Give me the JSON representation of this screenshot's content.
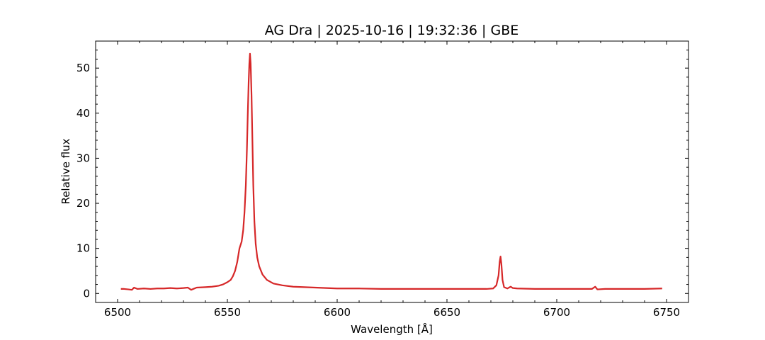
{
  "chart_data": {
    "type": "line",
    "title": "AG Dra | 2025-10-16 | 19:32:36 | GBE",
    "xlabel": "Wavelength [Å]",
    "ylabel": "Relative flux",
    "xlim": [
      6490,
      6760
    ],
    "ylim": [
      -2,
      56
    ],
    "xticks": [
      6500,
      6550,
      6600,
      6650,
      6700,
      6750
    ],
    "yticks": [
      0,
      10,
      20,
      30,
      40,
      50
    ],
    "grid": false,
    "series": [
      {
        "color": "#d62728",
        "x": [
          6501.5,
          6503,
          6505,
          6506.5,
          6507.5,
          6509,
          6512,
          6515,
          6518,
          6521,
          6524,
          6527,
          6530,
          6532,
          6533.5,
          6536,
          6540,
          6543,
          6546,
          6548,
          6550,
          6551.5,
          6552.5,
          6553.5,
          6554.5,
          6555.5,
          6556.5,
          6557.2,
          6557.8,
          6558.4,
          6558.9,
          6559.3,
          6559.7,
          6560.0,
          6560.3,
          6560.6,
          6561.0,
          6561.4,
          6561.8,
          6562.3,
          6562.9,
          6563.6,
          6564.5,
          6566,
          6568,
          6571,
          6575,
          6580,
          6585,
          6590,
          6595,
          6600,
          6610,
          6620,
          6630,
          6640,
          6650,
          6660,
          6668,
          6671,
          6672.5,
          6673.5,
          6674.0,
          6674.4,
          6674.8,
          6675.3,
          6676,
          6677.5,
          6679,
          6680,
          6682,
          6690,
          6700,
          6710,
          6716,
          6717.5,
          6718.5,
          6722,
          6730,
          6740,
          6748
        ],
        "y": [
          1.0,
          1.0,
          0.9,
          0.8,
          1.3,
          1.0,
          1.1,
          1.0,
          1.1,
          1.1,
          1.2,
          1.1,
          1.2,
          1.3,
          0.8,
          1.3,
          1.4,
          1.5,
          1.7,
          2.0,
          2.5,
          3.0,
          3.8,
          5.0,
          7.0,
          10.0,
          11.5,
          14.0,
          18.0,
          24.0,
          32.0,
          40.0,
          47.0,
          51.0,
          53.2,
          51.0,
          44.0,
          34.0,
          24.0,
          16.0,
          11.0,
          8.0,
          6.0,
          4.2,
          3.0,
          2.2,
          1.8,
          1.5,
          1.4,
          1.3,
          1.2,
          1.1,
          1.1,
          1.0,
          1.0,
          1.0,
          1.0,
          1.0,
          1.0,
          1.1,
          1.8,
          4.0,
          7.0,
          8.2,
          6.5,
          3.0,
          1.4,
          1.1,
          1.5,
          1.2,
          1.1,
          1.0,
          1.0,
          1.0,
          1.0,
          1.5,
          0.9,
          1.0,
          1.0,
          1.0,
          1.1
        ]
      }
    ]
  }
}
